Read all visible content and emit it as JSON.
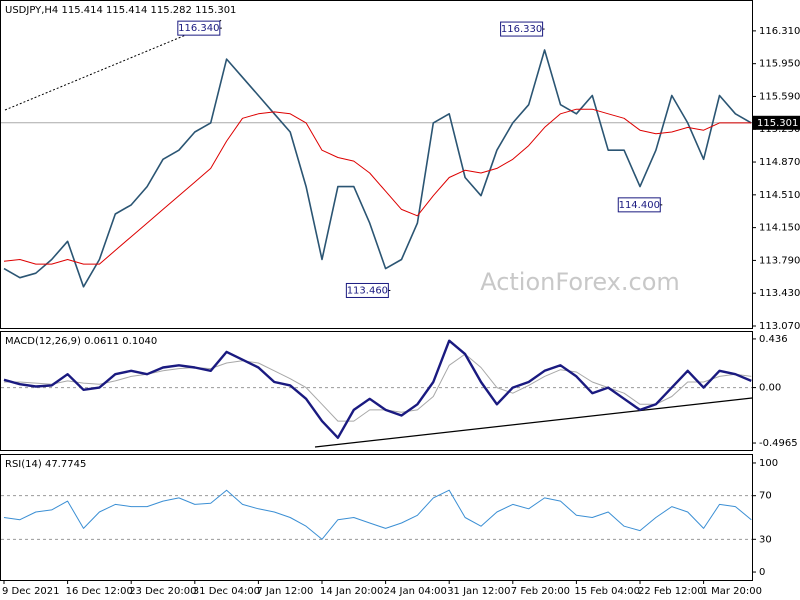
{
  "chart_data": [
    {
      "type": "line",
      "title": "USDJPY,H4  115.414 115.414 115.282 115.301",
      "watermark": "ActionForex.com",
      "ylim": [
        113.048,
        116.638
      ],
      "yticks": [
        {
          "value": 113.07,
          "label": "113.070"
        },
        {
          "value": 113.43,
          "label": "113.430"
        },
        {
          "value": 113.79,
          "label": "113.790"
        },
        {
          "value": 114.15,
          "label": "114.150"
        },
        {
          "value": 114.51,
          "label": "114.510"
        },
        {
          "value": 114.87,
          "label": "114.870"
        },
        {
          "value": 115.23,
          "label": "115.230"
        },
        {
          "value": 115.59,
          "label": "115.590"
        },
        {
          "value": 115.95,
          "label": "115.950"
        },
        {
          "value": 116.31,
          "label": "116.310"
        }
      ],
      "grid": false,
      "last_price": 115.301,
      "annotations": [
        {
          "label": "116.340",
          "value": 116.34,
          "x": 13.7
        },
        {
          "label": "116.330",
          "value": 116.33,
          "x": 34
        },
        {
          "label": "113.460",
          "value": 113.46,
          "x": 24.3
        },
        {
          "label": "114.400",
          "value": 114.4,
          "x": 41.4
        }
      ],
      "series": [
        {
          "color": "#2b5573",
          "width": 1.6,
          "values": [
            113.7,
            113.6,
            113.65,
            113.8,
            114.0,
            113.5,
            113.8,
            114.3,
            114.4,
            114.6,
            114.9,
            115.0,
            115.2,
            115.3,
            116.0,
            115.8,
            115.6,
            115.4,
            115.2,
            114.6,
            113.8,
            114.6,
            114.6,
            114.2,
            113.7,
            113.8,
            114.2,
            115.3,
            115.4,
            114.7,
            114.5,
            115.0,
            115.3,
            115.5,
            116.1,
            115.5,
            115.4,
            115.6,
            115.0,
            115.0,
            114.6,
            115.0,
            115.6,
            115.3,
            114.9,
            115.6,
            115.4,
            115.3
          ]
        },
        {
          "color": "#dd0000",
          "width": 1,
          "values": [
            113.78,
            113.8,
            113.75,
            113.75,
            113.8,
            113.75,
            113.75,
            113.9,
            114.05,
            114.2,
            114.35,
            114.5,
            114.65,
            114.8,
            115.1,
            115.35,
            115.4,
            115.42,
            115.4,
            115.3,
            115.0,
            114.92,
            114.88,
            114.75,
            114.55,
            114.35,
            114.28,
            114.5,
            114.7,
            114.78,
            114.75,
            114.8,
            114.9,
            115.05,
            115.25,
            115.4,
            115.45,
            115.45,
            115.4,
            115.35,
            115.22,
            115.18,
            115.2,
            115.25,
            115.22,
            115.3,
            115.3,
            115.3
          ]
        }
      ]
    },
    {
      "type": "line",
      "title": "MACD(12,26,9) 0.0611 0.1040",
      "ylim": [
        -0.559,
        0.498
      ],
      "yticks": [
        -0.4965,
        {
          "value": 0,
          "label": "0.00"
        },
        0.436
      ],
      "grid": "inner",
      "series": [
        {
          "color": "#a8a8a8",
          "width": 1,
          "values": [
            0.05,
            0.05,
            0.04,
            0.03,
            0.06,
            0.04,
            0.03,
            0.06,
            0.1,
            0.12,
            0.15,
            0.17,
            0.18,
            0.17,
            0.22,
            0.24,
            0.22,
            0.15,
            0.08,
            0.0,
            -0.15,
            -0.3,
            -0.3,
            -0.2,
            -0.2,
            -0.22,
            -0.2,
            -0.08,
            0.2,
            0.3,
            0.18,
            0.0,
            -0.05,
            0.02,
            0.1,
            0.16,
            0.14,
            0.05,
            0.0,
            -0.05,
            -0.15,
            -0.15,
            -0.08,
            0.05,
            0.05,
            0.1,
            0.12,
            0.1
          ]
        },
        {
          "color": "#1a1a80",
          "width": 2.4,
          "values": [
            0.07,
            0.03,
            0.01,
            0.02,
            0.12,
            -0.02,
            0.0,
            0.12,
            0.15,
            0.12,
            0.18,
            0.2,
            0.18,
            0.15,
            0.32,
            0.25,
            0.18,
            0.05,
            0.02,
            -0.1,
            -0.3,
            -0.45,
            -0.2,
            -0.1,
            -0.2,
            -0.25,
            -0.15,
            0.05,
            0.42,
            0.3,
            0.05,
            -0.15,
            0.0,
            0.05,
            0.15,
            0.2,
            0.1,
            -0.05,
            0.0,
            -0.1,
            -0.2,
            -0.15,
            0.0,
            0.15,
            0.0,
            0.15,
            0.12,
            0.06
          ]
        }
      ]
    },
    {
      "type": "line",
      "title": "RSI(14) 47.7745",
      "ylim": [
        -7.3,
        107.3
      ],
      "yticks": [
        0,
        30,
        70,
        100
      ],
      "grid": "inner",
      "categories": [
        "9 Dec 2021",
        null,
        null,
        null,
        "16 Dec 12:00",
        null,
        null,
        null,
        "23 Dec 20:00",
        null,
        null,
        null,
        "31 Dec 04:00",
        null,
        null,
        null,
        "7 Jan 12:00",
        null,
        null,
        null,
        "14 Jan 20:00",
        null,
        null,
        null,
        "24 Jan 04:00",
        null,
        null,
        null,
        "31 Jan 12:00",
        null,
        null,
        null,
        "7 Feb 20:00",
        null,
        null,
        null,
        "15 Feb 04:00",
        null,
        null,
        null,
        "22 Feb 12:00",
        null,
        null,
        null,
        "1 Mar 20:00",
        null,
        null,
        null
      ],
      "series": [
        {
          "color": "#3b8fd4",
          "width": 1,
          "values": [
            50,
            48,
            55,
            57,
            65,
            40,
            55,
            62,
            60,
            60,
            65,
            68,
            62,
            63,
            75,
            62,
            58,
            55,
            50,
            42,
            30,
            48,
            50,
            45,
            40,
            45,
            52,
            68,
            75,
            50,
            42,
            55,
            62,
            58,
            68,
            65,
            52,
            50,
            55,
            42,
            38,
            50,
            60,
            55,
            40,
            62,
            60,
            48
          ]
        }
      ]
    }
  ]
}
